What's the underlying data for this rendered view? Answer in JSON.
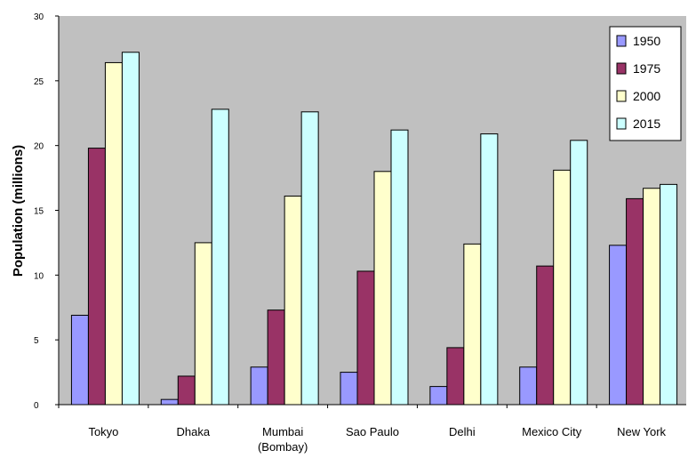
{
  "chart_data": {
    "type": "bar",
    "ylabel": "Population (millions)",
    "ylim": [
      0,
      30
    ],
    "yticks": [
      "0",
      "5",
      "10",
      "15",
      "20",
      "25",
      "30"
    ],
    "categories": [
      "Tokyo",
      "Dhaka",
      "Mumbai\n(Bombay)",
      "Sao Paulo",
      "Delhi",
      "Mexico City",
      "New York"
    ],
    "series": [
      {
        "name": "1950",
        "color": "#9999ff",
        "values": [
          6.9,
          0.4,
          2.9,
          2.5,
          1.4,
          2.9,
          12.3
        ]
      },
      {
        "name": "1975",
        "color": "#993366",
        "values": [
          19.8,
          2.2,
          7.3,
          10.3,
          4.4,
          10.7,
          15.9
        ]
      },
      {
        "name": "2000",
        "color": "#ffffcc",
        "values": [
          26.4,
          12.5,
          16.1,
          18.0,
          12.4,
          18.1,
          16.7
        ]
      },
      {
        "name": "2015",
        "color": "#ccffff",
        "values": [
          27.2,
          22.8,
          22.6,
          21.2,
          20.9,
          20.4,
          17.0
        ]
      }
    ],
    "legend_position": "top-right",
    "plot_background": "#c0c0c0",
    "grid": false
  }
}
